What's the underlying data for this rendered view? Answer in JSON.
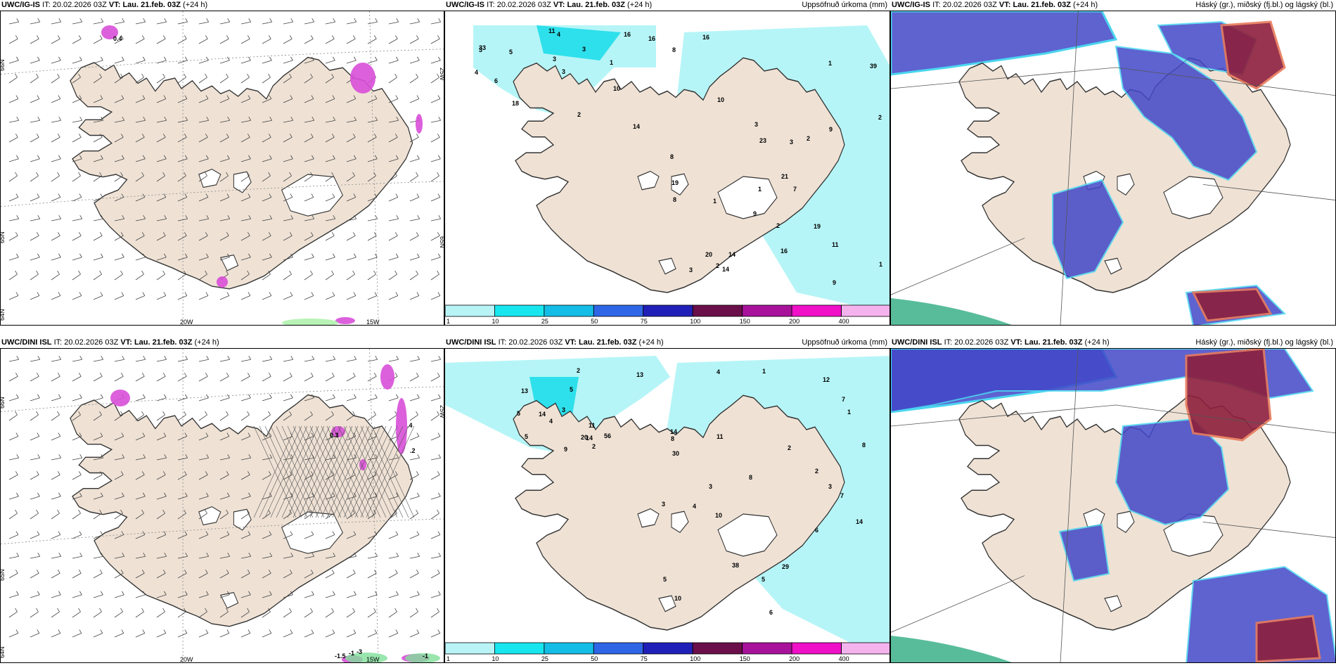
{
  "colors": {
    "land": "#efe2d5",
    "sea": "#ffffff",
    "precip_light": "#b6f5f7",
    "precip_mid": "#2ee0eb",
    "cloud_low": "#4248c8",
    "cloud_high": "#8d1f3c",
    "cloud_edge": "#4ad6f0",
    "pink": "#d84fd8"
  },
  "panels": [
    {
      "id": "p1",
      "model": "UWC/IG-IS",
      "it_label": "IT:",
      "it_value": "20.02.2026 03Z",
      "vt_label": "VT:",
      "vt_value": "Lau. 21.feb. 03Z",
      "lead": "(+24 h)",
      "right_title": "",
      "grid_labels": [
        "66N",
        "65N",
        "64N",
        "20W",
        "15W",
        "25W",
        "65N"
      ],
      "annot": [
        "0.4"
      ]
    },
    {
      "id": "p2",
      "model": "UWC/IG-IS",
      "it_label": "IT:",
      "it_value": "20.02.2026 03Z",
      "vt_label": "VT:",
      "vt_value": "Lau. 21.feb. 03Z",
      "lead": "(+24 h)",
      "right_title": "Uppsöfnuð úrkoma (mm)",
      "values": [
        "4",
        "4",
        "1",
        "16",
        "33",
        "14",
        "6",
        "3",
        "3",
        "16",
        "3",
        "10",
        "11",
        "3",
        "5",
        "18",
        "2",
        "8",
        "21",
        "9",
        "19",
        "11",
        "39",
        "3",
        "20",
        "23",
        "7",
        "16",
        "14",
        "16",
        "19",
        "9",
        "3",
        "3",
        "2",
        "8",
        "9",
        "8",
        "14",
        "10",
        "2",
        "2",
        "1",
        "2",
        "1",
        "1",
        "1"
      ]
    },
    {
      "id": "p3",
      "model": "UWC/IG-IS",
      "it_label": "IT:",
      "it_value": "20.02.2026 03Z",
      "vt_label": "VT:",
      "vt_value": "Lau. 21.feb. 03Z",
      "lead": "(+24 h)",
      "right_title": "Háský (gr.), miðský (fj.bl.) og lágský (bl.)"
    },
    {
      "id": "p4",
      "model": "UWC/DINI ISL",
      "it_label": "IT:",
      "it_value": "20.02.2026 03Z",
      "vt_label": "VT:",
      "vt_value": "Lau. 21.feb. 03Z",
      "lead": "(+24 h)",
      "right_title": "",
      "grid_labels": [
        "66N",
        "65N",
        "64N",
        "20W",
        "15W",
        "25W"
      ],
      "annot": [
        "0.3",
        ".4",
        ".2",
        "-1.5",
        "-1",
        "-3",
        "-1"
      ]
    },
    {
      "id": "p5",
      "model": "UWC/DINI ISL",
      "it_label": "IT:",
      "it_value": "20.02.2026 03Z",
      "vt_label": "VT:",
      "vt_value": "Lau. 21.feb. 03Z",
      "lead": "(+24 h)",
      "right_title": "Uppsöfnuð úrkoma (mm)",
      "values": [
        "2",
        "3",
        "2",
        "20",
        "14",
        "11",
        "9",
        "13",
        "56",
        "14",
        "4",
        "5",
        "5",
        "13",
        "5",
        "7",
        "3",
        "8",
        "2",
        "10",
        "12",
        "14",
        "10",
        "38",
        "30",
        "29",
        "5",
        "5",
        "3",
        "4",
        "8",
        "7",
        "14",
        "3",
        "4",
        "8",
        "11",
        "2",
        "6",
        "1",
        "1",
        "6"
      ]
    },
    {
      "id": "p6",
      "model": "UWC/DINI ISL",
      "it_label": "IT:",
      "it_value": "20.02.2026 03Z",
      "vt_label": "VT:",
      "vt_value": "Lau. 21.feb. 03Z",
      "lead": "(+24 h)",
      "right_title": "Háský (gr.), miðský (fj.bl.) og lágský (bl.)"
    }
  ],
  "colorbar": {
    "labels": [
      "1",
      "10",
      "25",
      "50",
      "75",
      "100",
      "150",
      "200",
      "400"
    ],
    "colors": [
      "#b8f3f6",
      "#18e6ef",
      "#14bde6",
      "#2f66e6",
      "#2020b8",
      "#6a0f4a",
      "#a8129a",
      "#ef10c8",
      "#f5b3ee"
    ]
  }
}
